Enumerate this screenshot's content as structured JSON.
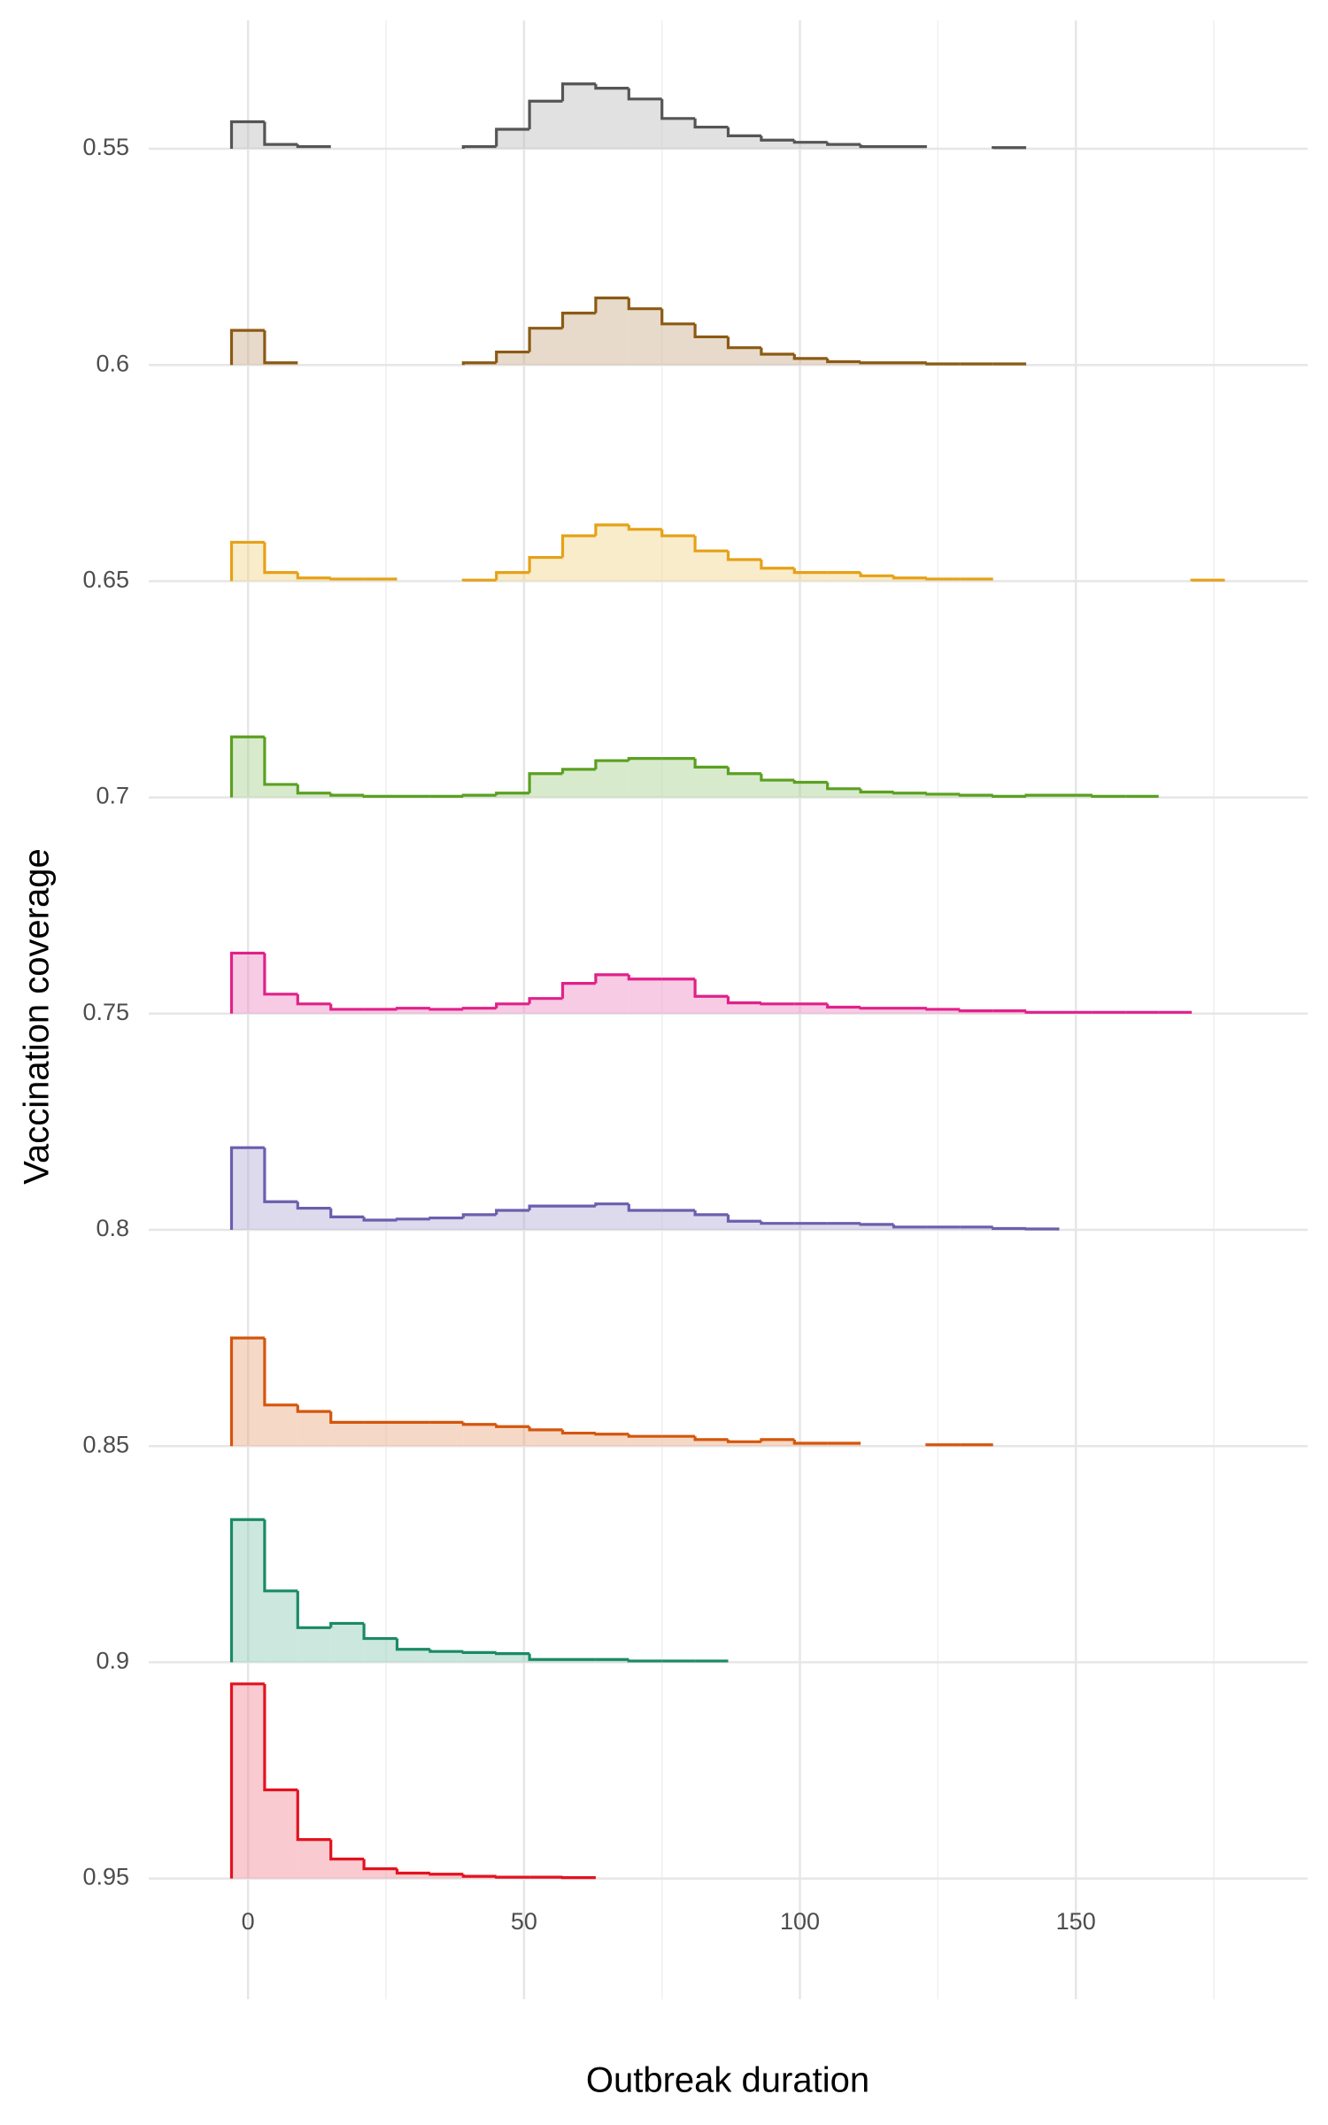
{
  "chart_data": {
    "type": "ridgeline-histogram",
    "x_label": "Outbreak duration",
    "y_label": "Vaccination coverage",
    "xlim": [
      -18,
      192
    ],
    "xticks": [
      0,
      50,
      100,
      150
    ],
    "x_minor_grid": [
      25,
      75,
      125,
      175
    ],
    "grid": true,
    "bins": [
      -3,
      3,
      9,
      15,
      21,
      27,
      33,
      39,
      45,
      51,
      57,
      63,
      69,
      75,
      81,
      87,
      93,
      99,
      105,
      111,
      117,
      123,
      129,
      135,
      141,
      147,
      153,
      159,
      165,
      171,
      177
    ],
    "series": [
      {
        "name": "0.55",
        "color": "#555555",
        "fill": "#bdbdbd",
        "values": [
          0.125,
          0.02,
          0.01,
          null,
          null,
          null,
          null,
          0.01,
          0.09,
          0.22,
          0.3,
          0.28,
          0.23,
          0.14,
          0.1,
          0.06,
          0.04,
          0.03,
          0.02,
          0.01,
          0.01,
          null,
          null,
          0.005,
          null,
          null,
          null,
          null,
          null,
          null
        ]
      },
      {
        "name": "0.6",
        "color": "#8c5a14",
        "fill": "#c9ad8a",
        "values": [
          0.16,
          0.01,
          null,
          null,
          null,
          null,
          null,
          0.01,
          0.06,
          0.17,
          0.24,
          0.31,
          0.26,
          0.19,
          0.13,
          0.08,
          0.05,
          0.03,
          0.015,
          0.01,
          0.01,
          0.005,
          0.005,
          0.005,
          null,
          null,
          null,
          null,
          null,
          null
        ]
      },
      {
        "name": "0.65",
        "color": "#e6a117",
        "fill": "#f2d58a",
        "values": [
          0.18,
          0.04,
          0.015,
          0.01,
          0.01,
          null,
          null,
          0.005,
          0.04,
          0.11,
          0.21,
          0.26,
          0.24,
          0.21,
          0.14,
          0.1,
          0.06,
          0.04,
          0.04,
          0.025,
          0.015,
          0.01,
          0.01,
          null,
          null,
          null,
          null,
          null,
          null,
          0.005
        ]
      },
      {
        "name": "0.7",
        "color": "#5aa021",
        "fill": "#a9d08e",
        "values": [
          0.28,
          0.06,
          0.02,
          0.01,
          0.005,
          0.005,
          0.005,
          0.01,
          0.02,
          0.11,
          0.13,
          0.17,
          0.18,
          0.18,
          0.14,
          0.11,
          0.08,
          0.07,
          0.04,
          0.025,
          0.02,
          0.015,
          0.01,
          0.005,
          0.01,
          0.01,
          0.005,
          0.005,
          null,
          null
        ]
      },
      {
        "name": "0.75",
        "color": "#e0218a",
        "fill": "#f08cc4",
        "values": [
          0.28,
          0.09,
          0.045,
          0.02,
          0.02,
          0.025,
          0.02,
          0.025,
          0.045,
          0.07,
          0.14,
          0.18,
          0.16,
          0.16,
          0.08,
          0.05,
          0.045,
          0.045,
          0.03,
          0.025,
          0.025,
          0.02,
          0.013,
          0.013,
          0.006,
          0.006,
          0.006,
          0.006,
          0.006,
          null
        ]
      },
      {
        "name": "0.8",
        "color": "#6b5fad",
        "fill": "#b3acd8",
        "values": [
          0.38,
          0.13,
          0.1,
          0.06,
          0.045,
          0.05,
          0.055,
          0.07,
          0.09,
          0.11,
          0.11,
          0.12,
          0.09,
          0.09,
          0.07,
          0.04,
          0.03,
          0.03,
          0.03,
          0.025,
          0.013,
          0.013,
          0.013,
          0.006,
          0.004,
          null,
          null,
          null,
          null,
          null
        ]
      },
      {
        "name": "0.85",
        "color": "#d4560c",
        "fill": "#eba982",
        "values": [
          0.5,
          0.19,
          0.16,
          0.11,
          0.11,
          0.11,
          0.11,
          0.1,
          0.09,
          0.075,
          0.06,
          0.055,
          0.045,
          0.045,
          0.03,
          0.02,
          0.03,
          0.013,
          0.013,
          null,
          null,
          0.006,
          0.006,
          null,
          null,
          null,
          null,
          null,
          null,
          null
        ]
      },
      {
        "name": "0.9",
        "color": "#1b8a66",
        "fill": "#8fcdb6",
        "values": [
          0.66,
          0.33,
          0.16,
          0.18,
          0.11,
          0.06,
          0.05,
          0.045,
          0.04,
          0.013,
          0.013,
          0.013,
          0.006,
          0.006,
          0.006,
          null,
          null,
          null,
          null,
          null,
          null,
          null,
          null,
          null,
          null,
          null,
          null,
          null,
          null,
          null
        ]
      },
      {
        "name": "0.95",
        "color": "#e3121f",
        "fill": "#f3899a",
        "values": [
          0.9,
          0.41,
          0.18,
          0.09,
          0.045,
          0.025,
          0.02,
          0.01,
          0.006,
          0.006,
          0.004,
          null,
          null,
          null,
          null,
          null,
          null,
          null,
          null,
          null,
          null,
          null,
          null,
          null,
          null,
          null,
          null,
          null,
          null,
          null
        ]
      }
    ]
  }
}
